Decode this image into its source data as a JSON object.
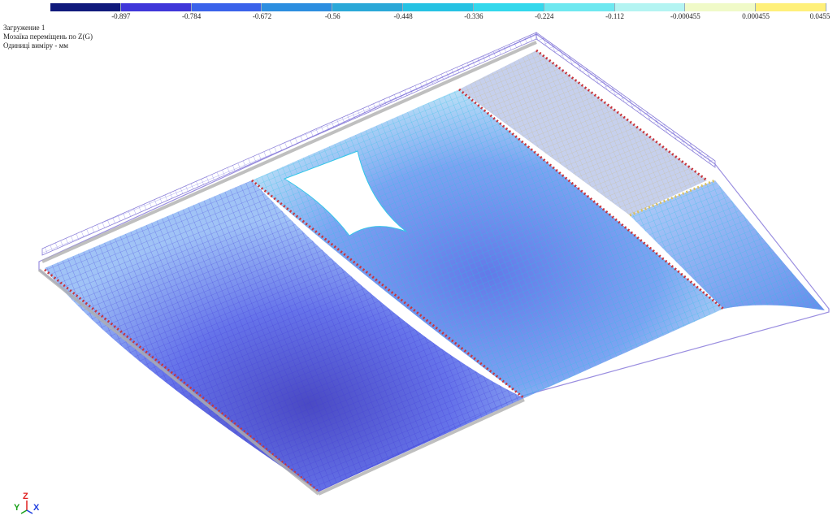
{
  "legend": {
    "colors": [
      "#101a7c",
      "#3f36d9",
      "#3a62ea",
      "#2c8ee0",
      "#2aa8d8",
      "#25c2e3",
      "#33d8ec",
      "#6ee8f0",
      "#b4f4f2",
      "#f0fac8",
      "#fff07a"
    ],
    "ticks": [
      "-0.897",
      "-0.784",
      "-0.672",
      "-0.56",
      "-0.448",
      "-0.336",
      "-0.224",
      "-0.112",
      "-0.000455",
      "0.000455",
      "0.0455"
    ]
  },
  "info": {
    "load_case": "Загружение 1",
    "mosaic_title": "Мозаїка переміщень по Z(G)",
    "units": "Одиниці виміру - мм"
  },
  "axes": {
    "y": "Y",
    "z": "Z",
    "x": "X"
  }
}
